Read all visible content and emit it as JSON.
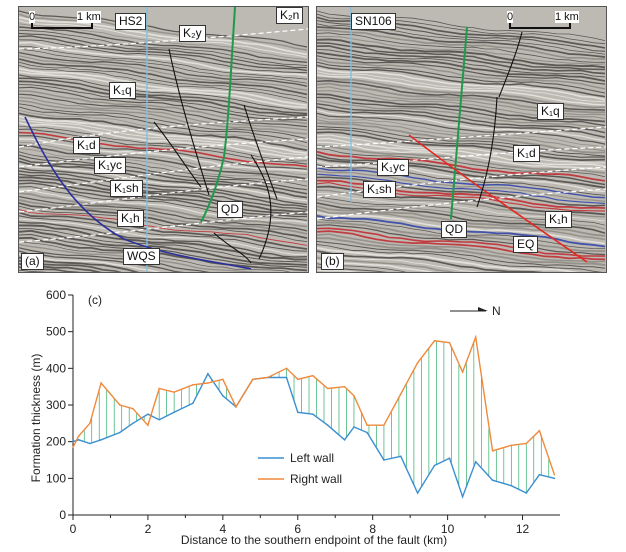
{
  "panel_a": {
    "scale": {
      "zero": "0",
      "dist": "1 km"
    },
    "well": "HS2",
    "tag": "(a)",
    "labels": {
      "k2n": "K₂n",
      "k2y": "K₂y",
      "k1q": "K₁q",
      "k1d": "K₁d",
      "k1yc": "K₁yc",
      "k1sh": "K₁sh",
      "k1h": "K₁h",
      "qd": "QD",
      "wqs": "WQS"
    }
  },
  "panel_b": {
    "scale": {
      "zero": "0",
      "dist": "1 km"
    },
    "well": "SN106",
    "tag": "(b)",
    "labels": {
      "k1q": "K₁q",
      "k1d": "K₁d",
      "k1yc": "K₁yc",
      "k1sh": "K₁sh",
      "k1h": "K₁h",
      "qd": "QD",
      "eq": "EQ"
    }
  },
  "colors": {
    "left_wall": "#3a8fd1",
    "right_wall": "#f08a3c",
    "fill_lines": "#2fae6a"
  },
  "chart_data": {
    "type": "line",
    "panel_tag": "(c)",
    "north_label": "N",
    "xlabel": "Distance to the southern endpoint of the fault (km)",
    "ylabel": "Formation thickness (m)",
    "xlim": [
      0,
      13
    ],
    "ylim": [
      0,
      600
    ],
    "xticks": [
      0,
      2,
      4,
      6,
      8,
      10,
      12
    ],
    "yticks": [
      0,
      100,
      200,
      300,
      400,
      500,
      600
    ],
    "legend_placement": "bottom-center",
    "series": [
      {
        "name": "Left wall",
        "x": [
          0,
          0.15,
          0.45,
          0.75,
          1.25,
          1.6,
          2.0,
          2.3,
          2.7,
          3.2,
          3.6,
          4.0,
          4.35,
          4.8,
          5.2,
          5.7,
          6.0,
          6.4,
          6.8,
          7.25,
          7.5,
          7.85,
          8.3,
          8.75,
          9.2,
          9.65,
          10.05,
          10.4,
          10.75,
          11.2,
          11.7,
          12.1,
          12.45,
          12.85
        ],
        "values": [
          200,
          205,
          195,
          205,
          225,
          250,
          275,
          260,
          280,
          305,
          385,
          325,
          295,
          370,
          375,
          375,
          280,
          275,
          245,
          205,
          240,
          225,
          150,
          160,
          60,
          135,
          155,
          50,
          145,
          95,
          80,
          60,
          110,
          100
        ]
      },
      {
        "name": "Right wall",
        "x": [
          0,
          0.15,
          0.45,
          0.75,
          1.25,
          1.6,
          2.0,
          2.3,
          2.7,
          3.2,
          3.6,
          4.0,
          4.35,
          4.8,
          5.2,
          5.7,
          6.0,
          6.4,
          6.8,
          7.25,
          7.5,
          7.85,
          8.3,
          8.75,
          9.2,
          9.65,
          10.05,
          10.4,
          10.75,
          11.2,
          11.7,
          12.1,
          12.45,
          12.85
        ],
        "values": [
          185,
          215,
          250,
          360,
          300,
          290,
          245,
          345,
          335,
          355,
          360,
          370,
          295,
          370,
          375,
          400,
          370,
          380,
          345,
          350,
          325,
          245,
          245,
          330,
          415,
          475,
          470,
          390,
          485,
          175,
          190,
          195,
          230,
          110
        ]
      }
    ]
  }
}
